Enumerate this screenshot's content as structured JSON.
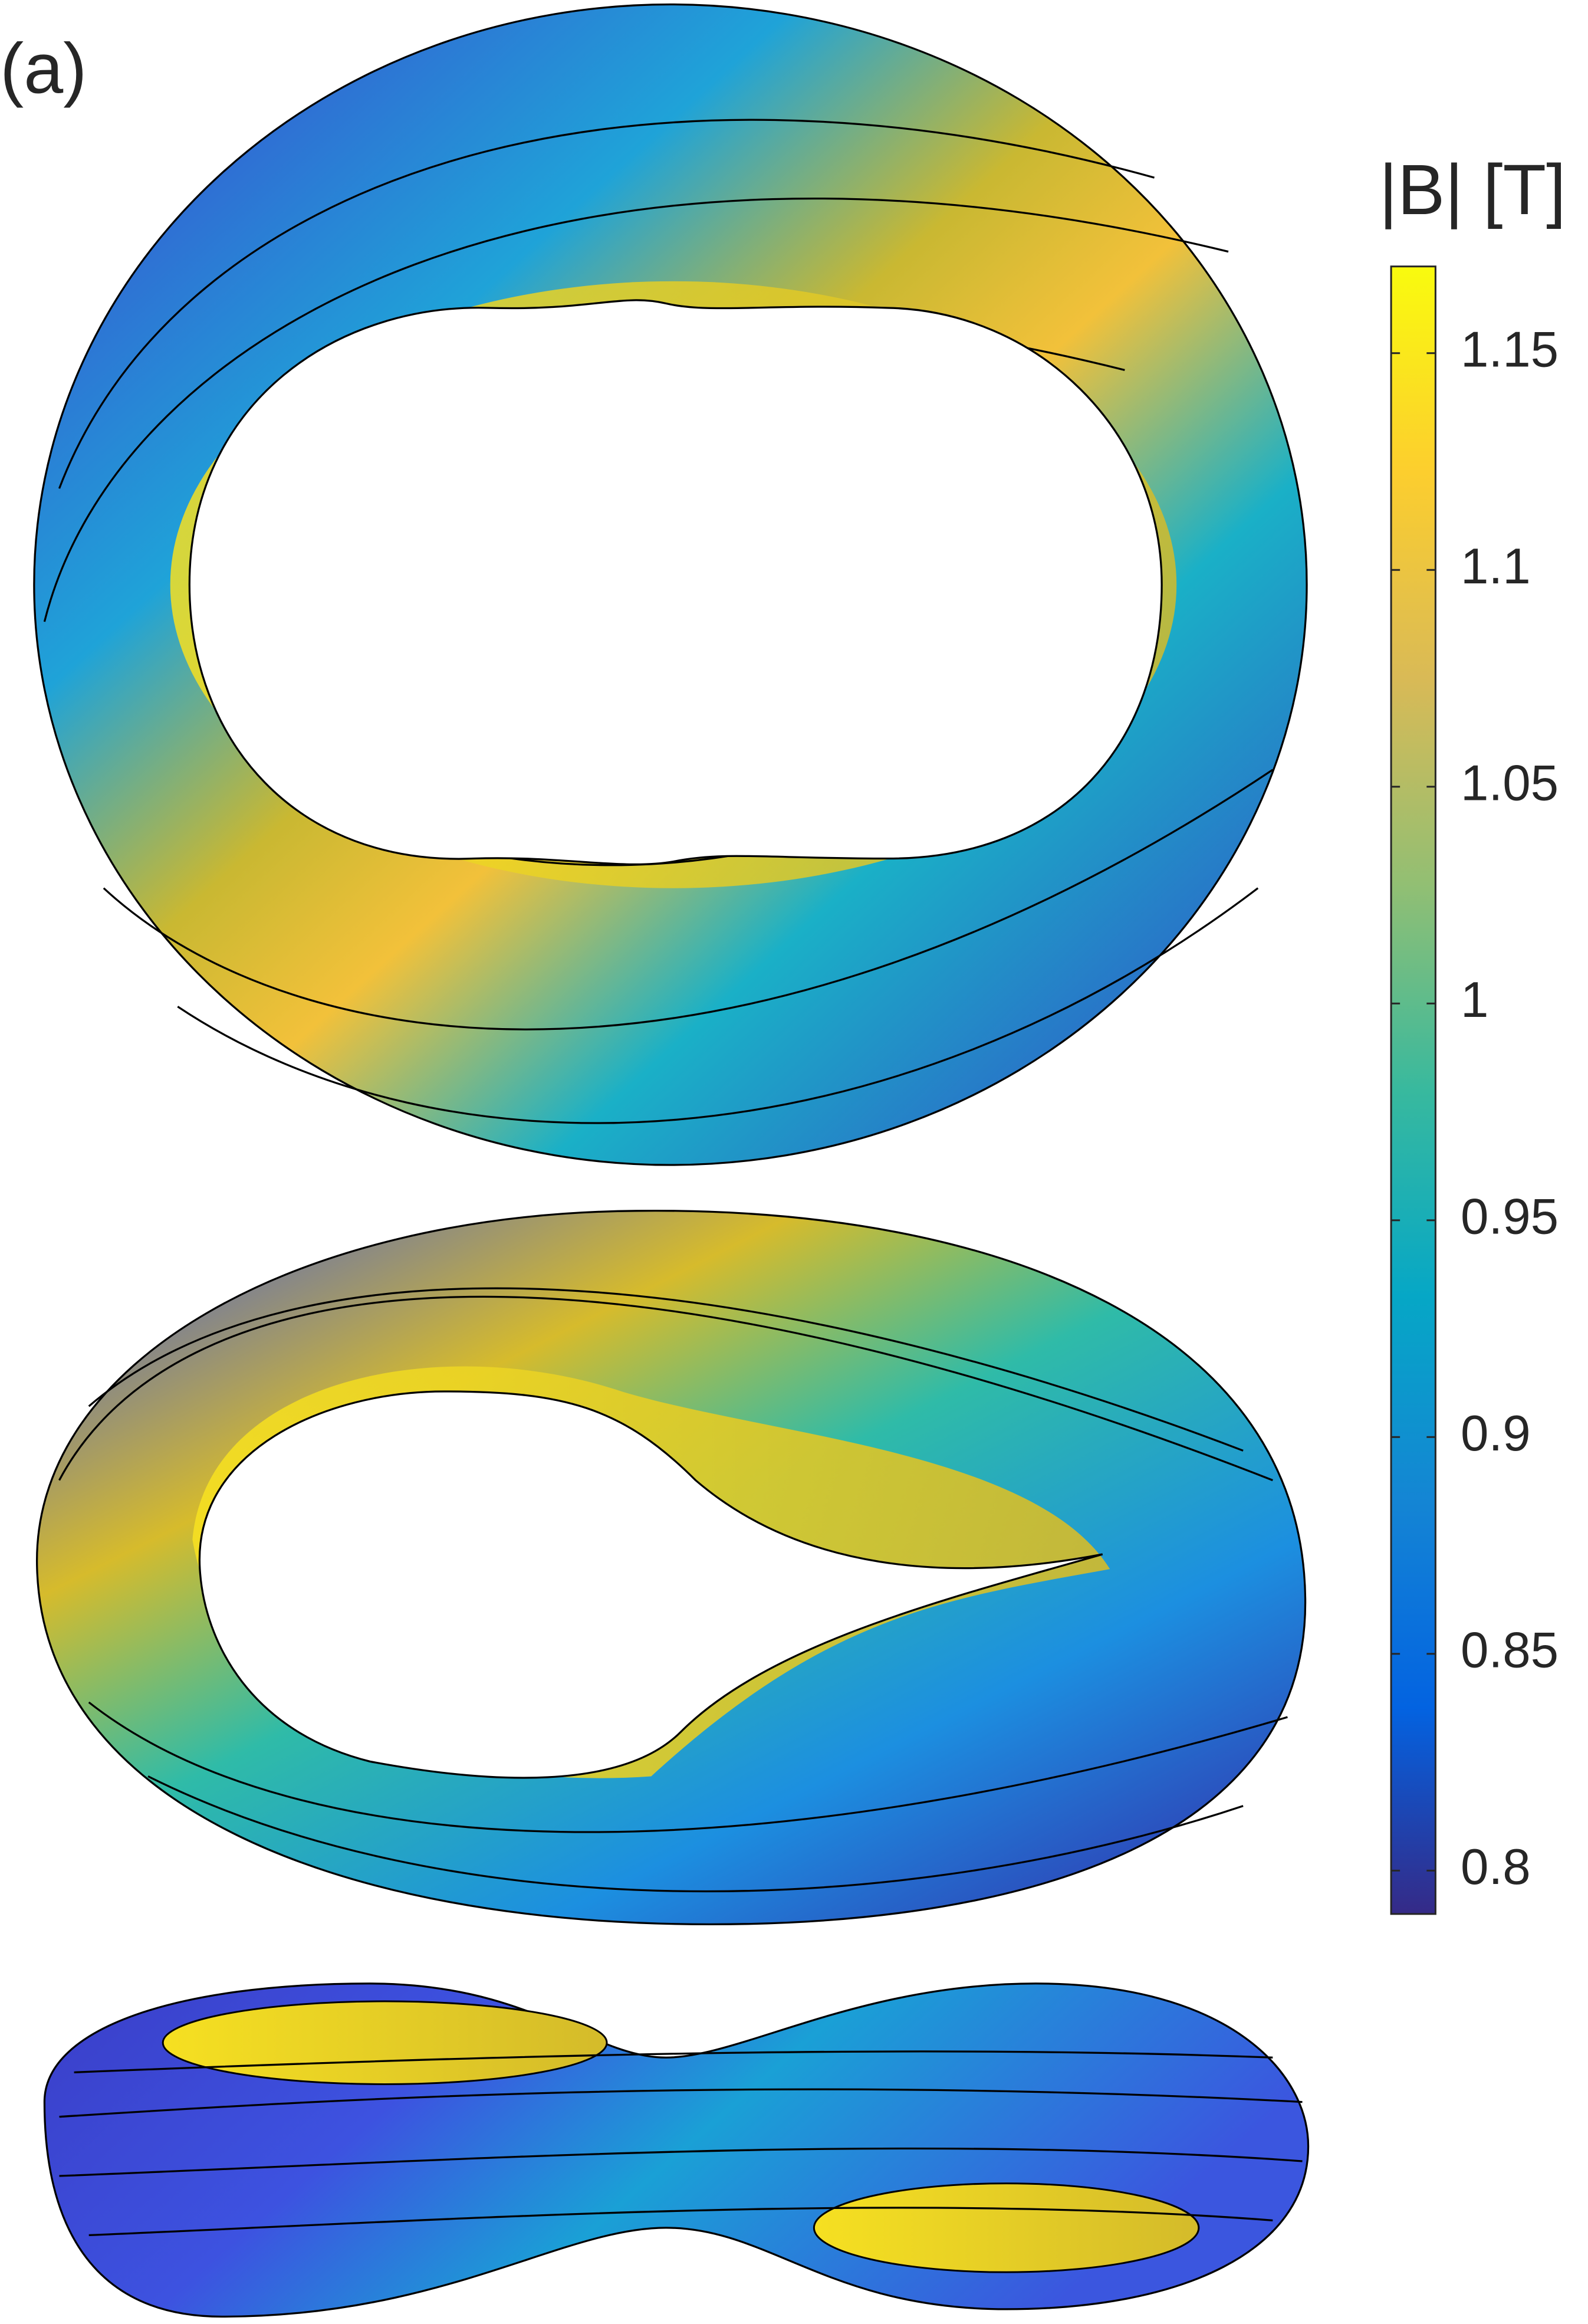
{
  "chart_data": {
    "type": "surface",
    "panel_label": "(a)",
    "colorbar": {
      "label": "|B| [T]",
      "clim": [
        0.79,
        1.17
      ],
      "ticks": [
        0.8,
        0.85,
        0.9,
        0.95,
        1,
        1.05,
        1.1,
        1.15
      ],
      "colormap": "parula"
    }
  }
}
